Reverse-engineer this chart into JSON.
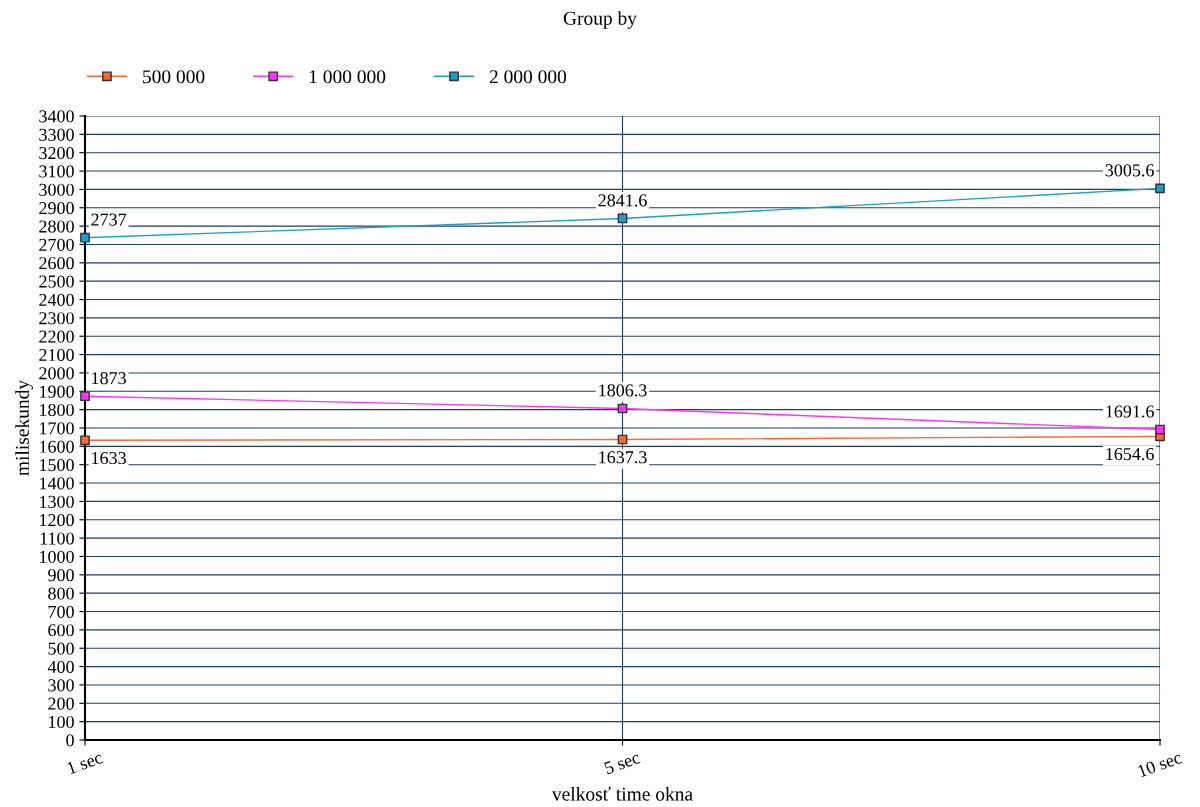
{
  "chart_data": {
    "type": "line",
    "title": "Group by",
    "xlabel": "velkosť time okna",
    "ylabel": "milisekundy",
    "categories": [
      "1 sec",
      "5 sec",
      "10 sec"
    ],
    "series": [
      {
        "name": "500 000",
        "color": "#ff6633",
        "values": [
          1633,
          1637.3,
          1654.6
        ]
      },
      {
        "name": "1 000 000",
        "color": "#ff33ff",
        "values": [
          1873,
          1806.3,
          1691.6
        ]
      },
      {
        "name": "2 000 000",
        "color": "#1a9fcc",
        "values": [
          2737,
          2841.6,
          3005.6
        ]
      }
    ],
    "ylim": [
      0,
      3400
    ],
    "yticks": [
      0,
      100,
      200,
      300,
      400,
      500,
      600,
      700,
      800,
      900,
      1000,
      1100,
      1200,
      1300,
      1400,
      1500,
      1600,
      1700,
      1800,
      1900,
      2000,
      2100,
      2200,
      2300,
      2400,
      2500,
      2600,
      2700,
      2800,
      2900,
      3000,
      3100,
      3200,
      3300,
      3400
    ],
    "grid": true,
    "legend": "top left",
    "marker": "square",
    "line_style": "solid",
    "data_labels": true
  }
}
